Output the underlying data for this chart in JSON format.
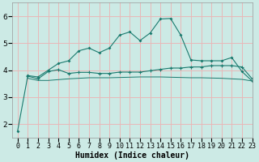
{
  "xlabel": "Humidex (Indice chaleur)",
  "background_color": "#cceae5",
  "grid_color": "#e8b8b8",
  "line_color": "#1a7a6e",
  "xlim": [
    -0.5,
    23
  ],
  "ylim": [
    1.5,
    6.5
  ],
  "yticks": [
    2,
    3,
    4,
    5,
    6
  ],
  "xticks": [
    0,
    1,
    2,
    3,
    4,
    5,
    6,
    7,
    8,
    9,
    10,
    11,
    12,
    13,
    14,
    15,
    16,
    17,
    18,
    19,
    20,
    21,
    22,
    23
  ],
  "series1_x": [
    0,
    1,
    2,
    3,
    4,
    5,
    6,
    7,
    8,
    9,
    10,
    11,
    12,
    13,
    14,
    15,
    16,
    17,
    18,
    19,
    20,
    21,
    22,
    23
  ],
  "series1_y": [
    1.75,
    3.8,
    3.75,
    4.0,
    4.25,
    4.35,
    4.72,
    4.82,
    4.65,
    4.82,
    5.3,
    5.42,
    5.1,
    5.38,
    5.9,
    5.92,
    5.3,
    4.38,
    4.35,
    4.35,
    4.35,
    4.47,
    3.95,
    3.6
  ],
  "series2_x": [
    1,
    2,
    3,
    4,
    5,
    6,
    7,
    8,
    9,
    10,
    11,
    12,
    13,
    14,
    15,
    16,
    17,
    18,
    19,
    20,
    21,
    22,
    23
  ],
  "series2_y": [
    3.78,
    3.68,
    3.95,
    4.02,
    3.88,
    3.92,
    3.92,
    3.88,
    3.88,
    3.93,
    3.93,
    3.93,
    3.98,
    4.03,
    4.08,
    4.08,
    4.12,
    4.12,
    4.17,
    4.17,
    4.17,
    4.12,
    3.68
  ],
  "series3_x": [
    1,
    2,
    3,
    4,
    5,
    6,
    7,
    8,
    9,
    10,
    11,
    12,
    13,
    14,
    15,
    16,
    17,
    18,
    19,
    20,
    21,
    22,
    23
  ],
  "series3_y": [
    3.7,
    3.62,
    3.62,
    3.65,
    3.68,
    3.7,
    3.72,
    3.72,
    3.72,
    3.73,
    3.74,
    3.75,
    3.75,
    3.75,
    3.74,
    3.73,
    3.72,
    3.72,
    3.71,
    3.7,
    3.68,
    3.66,
    3.6
  ]
}
